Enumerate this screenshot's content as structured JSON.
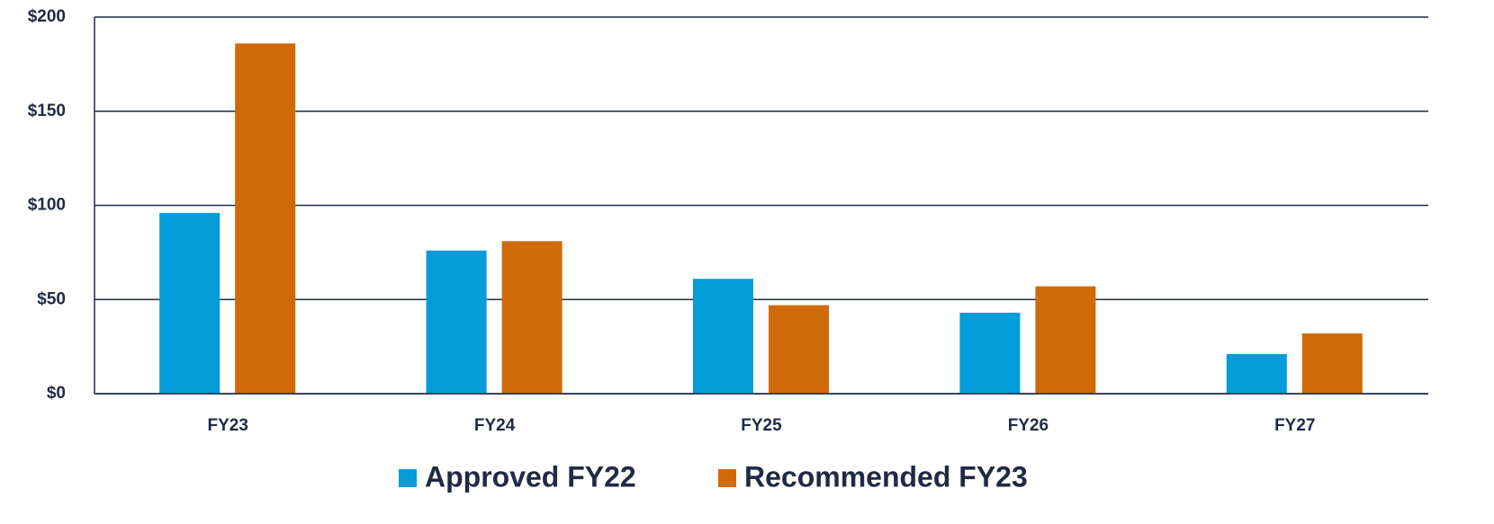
{
  "chart_data": {
    "type": "bar",
    "categories": [
      "FY23",
      "FY24",
      "FY25",
      "FY26",
      "FY27"
    ],
    "series": [
      {
        "name": "Approved FY22",
        "color": "#039bd8",
        "values": [
          96,
          76,
          61,
          43,
          21
        ]
      },
      {
        "name": "Recommended FY23",
        "color": "#d06a08",
        "values": [
          186,
          81,
          47,
          57,
          32
        ]
      }
    ],
    "ylim": [
      0,
      200
    ],
    "yticks": [
      {
        "value": 0,
        "label": "$0"
      },
      {
        "value": 50,
        "label": "$50"
      },
      {
        "value": 100,
        "label": "$100"
      },
      {
        "value": 150,
        "label": "$150"
      },
      {
        "value": 200,
        "label": "$200"
      }
    ],
    "grid": true,
    "legend": "bottom"
  }
}
